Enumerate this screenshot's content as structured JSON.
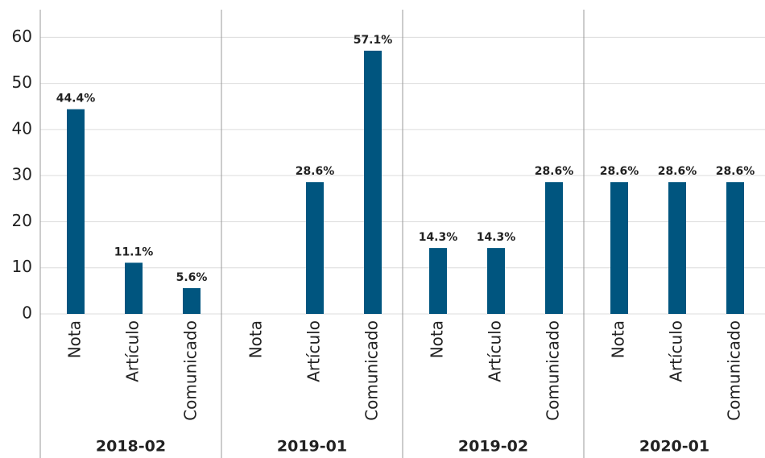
{
  "chart_data": {
    "type": "bar",
    "groups": [
      {
        "name": "2018-02",
        "categories": [
          "Nota",
          "Artículo",
          "Comunicado"
        ],
        "values": [
          44.4,
          11.1,
          5.6
        ],
        "value_labels": [
          "44.4%",
          "11.1%",
          "5.6%"
        ]
      },
      {
        "name": "2019-01",
        "categories": [
          "Nota",
          "Artículo",
          "Comunicado"
        ],
        "values": [
          null,
          28.6,
          57.1
        ],
        "value_labels": [
          null,
          "28.6%",
          "57.1%"
        ]
      },
      {
        "name": "2019-02",
        "categories": [
          "Nota",
          "Artículo",
          "Comunicado"
        ],
        "values": [
          14.3,
          14.3,
          28.6
        ],
        "value_labels": [
          "14.3%",
          "14.3%",
          "28.6%"
        ]
      },
      {
        "name": "2020-01",
        "categories": [
          "Nota",
          "Artículo",
          "Comunicado"
        ],
        "values": [
          28.6,
          28.6,
          28.6
        ],
        "value_labels": [
          "28.6%",
          "28.6%",
          "28.6%"
        ]
      }
    ],
    "color": "#00557f",
    "ylim": [
      0,
      66
    ],
    "yticks": [
      0,
      10,
      20,
      30,
      40,
      50,
      60
    ],
    "grid": true
  }
}
